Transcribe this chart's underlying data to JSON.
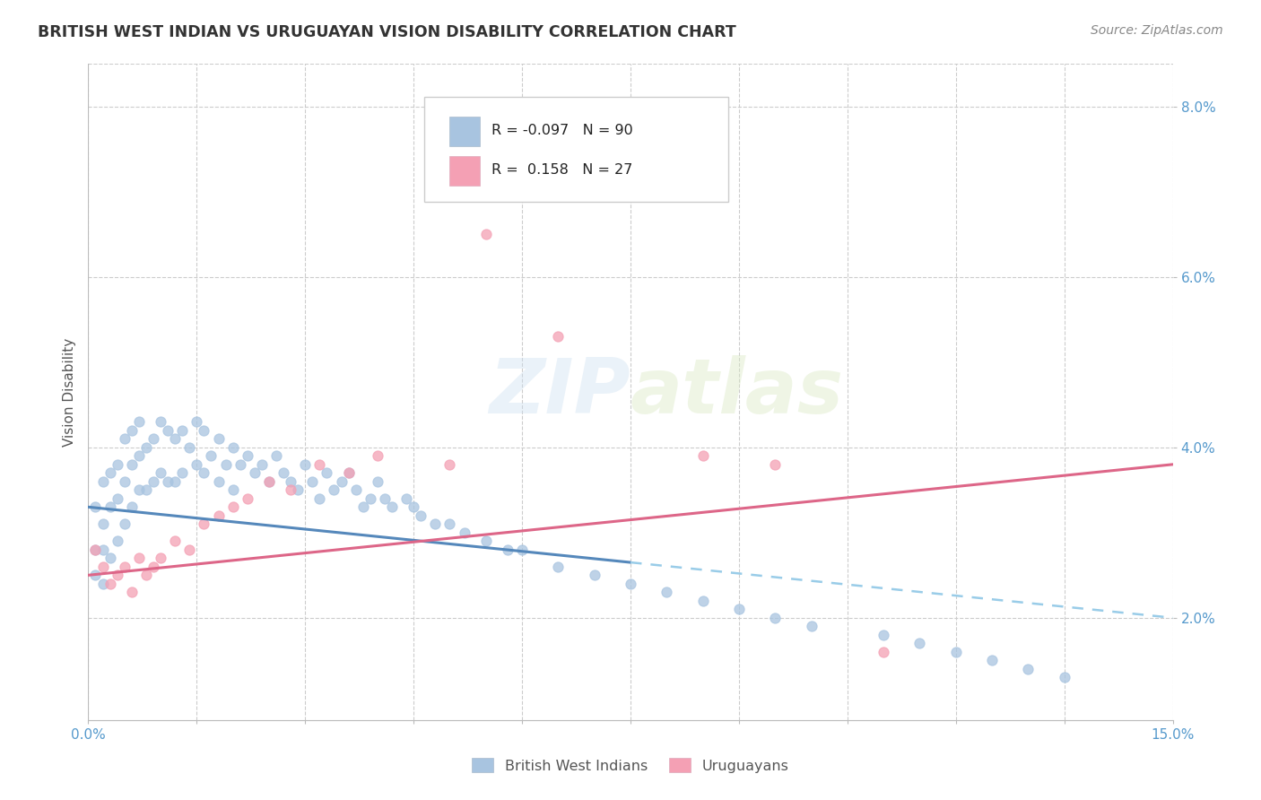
{
  "title": "BRITISH WEST INDIAN VS URUGUAYAN VISION DISABILITY CORRELATION CHART",
  "source": "Source: ZipAtlas.com",
  "ylabel": "Vision Disability",
  "xlim": [
    0.0,
    0.15
  ],
  "ylim": [
    0.008,
    0.085
  ],
  "xticks": [
    0.0,
    0.015,
    0.03,
    0.045,
    0.06,
    0.075,
    0.09,
    0.105,
    0.12,
    0.135,
    0.15
  ],
  "yticks": [
    0.02,
    0.04,
    0.06,
    0.08
  ],
  "color_bwi": "#a8c4e0",
  "color_uru": "#f4a0b4",
  "color_bwi_line_solid": "#5588bb",
  "color_bwi_line_dash": "#99cce8",
  "color_uru_line": "#dd6688",
  "background_color": "#ffffff",
  "grid_color": "#cccccc",
  "title_color": "#333333",
  "watermark": "ZIPatlas",
  "bwi_x": [
    0.001,
    0.001,
    0.001,
    0.002,
    0.002,
    0.002,
    0.002,
    0.003,
    0.003,
    0.003,
    0.004,
    0.004,
    0.004,
    0.005,
    0.005,
    0.005,
    0.006,
    0.006,
    0.006,
    0.007,
    0.007,
    0.007,
    0.008,
    0.008,
    0.009,
    0.009,
    0.01,
    0.01,
    0.011,
    0.011,
    0.012,
    0.012,
    0.013,
    0.013,
    0.014,
    0.015,
    0.015,
    0.016,
    0.016,
    0.017,
    0.018,
    0.018,
    0.019,
    0.02,
    0.02,
    0.021,
    0.022,
    0.023,
    0.024,
    0.025,
    0.026,
    0.027,
    0.028,
    0.029,
    0.03,
    0.031,
    0.032,
    0.033,
    0.034,
    0.035,
    0.036,
    0.037,
    0.038,
    0.039,
    0.04,
    0.041,
    0.042,
    0.044,
    0.045,
    0.046,
    0.048,
    0.05,
    0.052,
    0.055,
    0.058,
    0.06,
    0.065,
    0.07,
    0.075,
    0.08,
    0.085,
    0.09,
    0.095,
    0.1,
    0.11,
    0.115,
    0.12,
    0.125,
    0.13,
    0.135
  ],
  "bwi_y": [
    0.033,
    0.028,
    0.025,
    0.036,
    0.031,
    0.028,
    0.024,
    0.037,
    0.033,
    0.027,
    0.038,
    0.034,
    0.029,
    0.041,
    0.036,
    0.031,
    0.042,
    0.038,
    0.033,
    0.043,
    0.039,
    0.035,
    0.04,
    0.035,
    0.041,
    0.036,
    0.043,
    0.037,
    0.042,
    0.036,
    0.041,
    0.036,
    0.042,
    0.037,
    0.04,
    0.043,
    0.038,
    0.042,
    0.037,
    0.039,
    0.041,
    0.036,
    0.038,
    0.04,
    0.035,
    0.038,
    0.039,
    0.037,
    0.038,
    0.036,
    0.039,
    0.037,
    0.036,
    0.035,
    0.038,
    0.036,
    0.034,
    0.037,
    0.035,
    0.036,
    0.037,
    0.035,
    0.033,
    0.034,
    0.036,
    0.034,
    0.033,
    0.034,
    0.033,
    0.032,
    0.031,
    0.031,
    0.03,
    0.029,
    0.028,
    0.028,
    0.026,
    0.025,
    0.024,
    0.023,
    0.022,
    0.021,
    0.02,
    0.019,
    0.018,
    0.017,
    0.016,
    0.015,
    0.014,
    0.013
  ],
  "uru_x": [
    0.001,
    0.002,
    0.003,
    0.004,
    0.005,
    0.006,
    0.007,
    0.008,
    0.009,
    0.01,
    0.012,
    0.014,
    0.016,
    0.018,
    0.02,
    0.022,
    0.025,
    0.028,
    0.032,
    0.036,
    0.04,
    0.05,
    0.055,
    0.065,
    0.085,
    0.095,
    0.11
  ],
  "uru_y": [
    0.028,
    0.026,
    0.024,
    0.025,
    0.026,
    0.023,
    0.027,
    0.025,
    0.026,
    0.027,
    0.029,
    0.028,
    0.031,
    0.032,
    0.033,
    0.034,
    0.036,
    0.035,
    0.038,
    0.037,
    0.039,
    0.038,
    0.065,
    0.053,
    0.039,
    0.038,
    0.016
  ]
}
